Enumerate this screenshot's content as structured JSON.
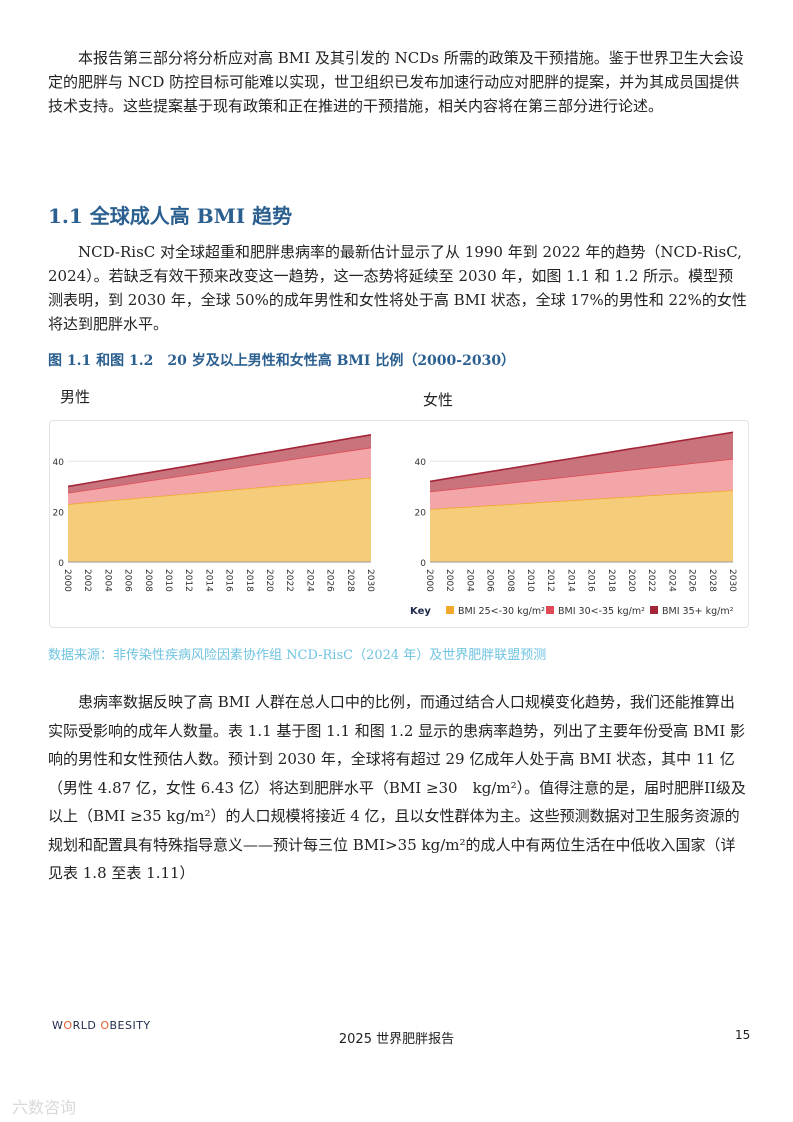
{
  "body": {
    "p1": "本报告第三部分将分析应对高 BMI 及其引发的 NCDs 所需的政策及干预措施。鉴于世界卫生大会设定的肥胖与 NCD 防控目标可能难以实现，世卫组织已发布加速行动应对肥胖的提案，并为其成员国提供技术支持。这些提案基于现有政策和正在推进的干预措施，相关内容将在第三部分进行论述。",
    "section_title": "1.1 全球成人高 BMI 趋势",
    "p2": "NCD-RisC 对全球超重和肥胖患病率的最新估计显示了从 1990 年到 2022 年的趋势（NCD-RisC, 2024）。若缺乏有效干预来改变这一趋势，这一态势将延续至 2030 年，如图 1.1 和 1.2 所示。模型预测表明，到 2030 年，全球 50%的成年男性和女性将处于高 BMI 状态，全球 17%的男性和 22%的女性将达到肥胖水平。",
    "figure_title": "图 1.1 和图 1.2　20 岁及以上男性和女性高 BMI 比例（2000-2030）",
    "source": "数据来源：非传染性疾病风险因素协作组 NCD-RisC（2024 年）及世界肥胖联盟预测",
    "p3": "患病率数据反映了高 BMI 人群在总人口中的比例，而通过结合人口规模变化趋势，我们还能推算出实际受影响的成年人数量。表 1.1 基于图 1.1 和图 1.2 显示的患病率趋势，列出了主要年份受高 BMI 影响的男性和女性预估人数。预计到 2030 年，全球将有超过 29 亿成年人处于高 BMI 状态，其中 11 亿（男性 4.87 亿，女性 6.43 亿）将达到肥胖水平（BMI ≥30　kg/m²）。值得注意的是，届时肥胖II级及以上（BMI ≥35 kg/m²）的人口规模将接近 4 亿，且以女性群体为主。这些预测数据对卫生服务资源的规划和配置具有特殊指导意义——预计每三位 BMI>35 kg/m²的成人中有两位生活在中低收入国家（详见表 1.8 至表 1.11）"
  },
  "colors": {
    "bmi25": "#f5cd7a",
    "bmi25_line": "#f0a92c",
    "bmi30": "#f2a6a8",
    "bmi30_line": "#de4a55",
    "bmi35": "#c9737c",
    "bmi35_line": "#a32638",
    "title": "#2a5f8f",
    "source": "#6fc3e0"
  },
  "chart_data": [
    {
      "type": "area",
      "panel_label": "男性",
      "x": [
        2000,
        2002,
        2004,
        2006,
        2008,
        2010,
        2012,
        2014,
        2016,
        2018,
        2020,
        2022,
        2024,
        2026,
        2028,
        2030
      ],
      "x_tick_labels": [
        "2000",
        "2002",
        "2004",
        "2006",
        "2008",
        "2010",
        "2012",
        "2014",
        "2016",
        "2018",
        "2020",
        "2022",
        "2024",
        "2026",
        "2028",
        "2030"
      ],
      "ylim": [
        0,
        52
      ],
      "y_ticks": [
        0,
        20,
        40
      ],
      "stacked": true,
      "series": [
        {
          "name": "BMI 25<-30 kg/m²",
          "values_start": 23,
          "values_end": 33.5
        },
        {
          "name": "BMI 30<-35 kg/m²",
          "values_start": 4.5,
          "values_end": 12
        },
        {
          "name": "BMI 35+ kg/m²",
          "values_start": 2.5,
          "values_end": 5
        }
      ]
    },
    {
      "type": "area",
      "panel_label": "女性",
      "x": [
        2000,
        2002,
        2004,
        2006,
        2008,
        2010,
        2012,
        2014,
        2016,
        2018,
        2020,
        2022,
        2024,
        2026,
        2028,
        2030
      ],
      "x_tick_labels": [
        "2000",
        "2002",
        "2004",
        "2006",
        "2008",
        "2010",
        "2012",
        "2014",
        "2016",
        "2018",
        "2020",
        "2022",
        "2024",
        "2026",
        "2028",
        "2030"
      ],
      "ylim": [
        0,
        52
      ],
      "y_ticks": [
        0,
        20,
        40
      ],
      "stacked": true,
      "series": [
        {
          "name": "BMI 25<-30 kg/m²",
          "values_start": 21,
          "values_end": 28.5
        },
        {
          "name": "BMI 30<-35 kg/m²",
          "values_start": 7,
          "values_end": 12.5
        },
        {
          "name": "BMI 35+ kg/m²",
          "values_start": 4,
          "values_end": 10.5
        }
      ]
    }
  ],
  "legend": {
    "key_label": "Key",
    "items": [
      "BMI 25<-30 kg/m²",
      "BMI 30<-35 kg/m²",
      "BMI 35+ kg/m²"
    ],
    "placement": "bottom-right"
  },
  "footer": {
    "logo_word1": "W",
    "logo_o": "O",
    "logo_rest1": "RLD ",
    "logo_o2": "O",
    "logo_rest2": "BESITY",
    "center": "2025 世界肥胖报告",
    "page_number": "15"
  },
  "watermark": "六数咨询"
}
